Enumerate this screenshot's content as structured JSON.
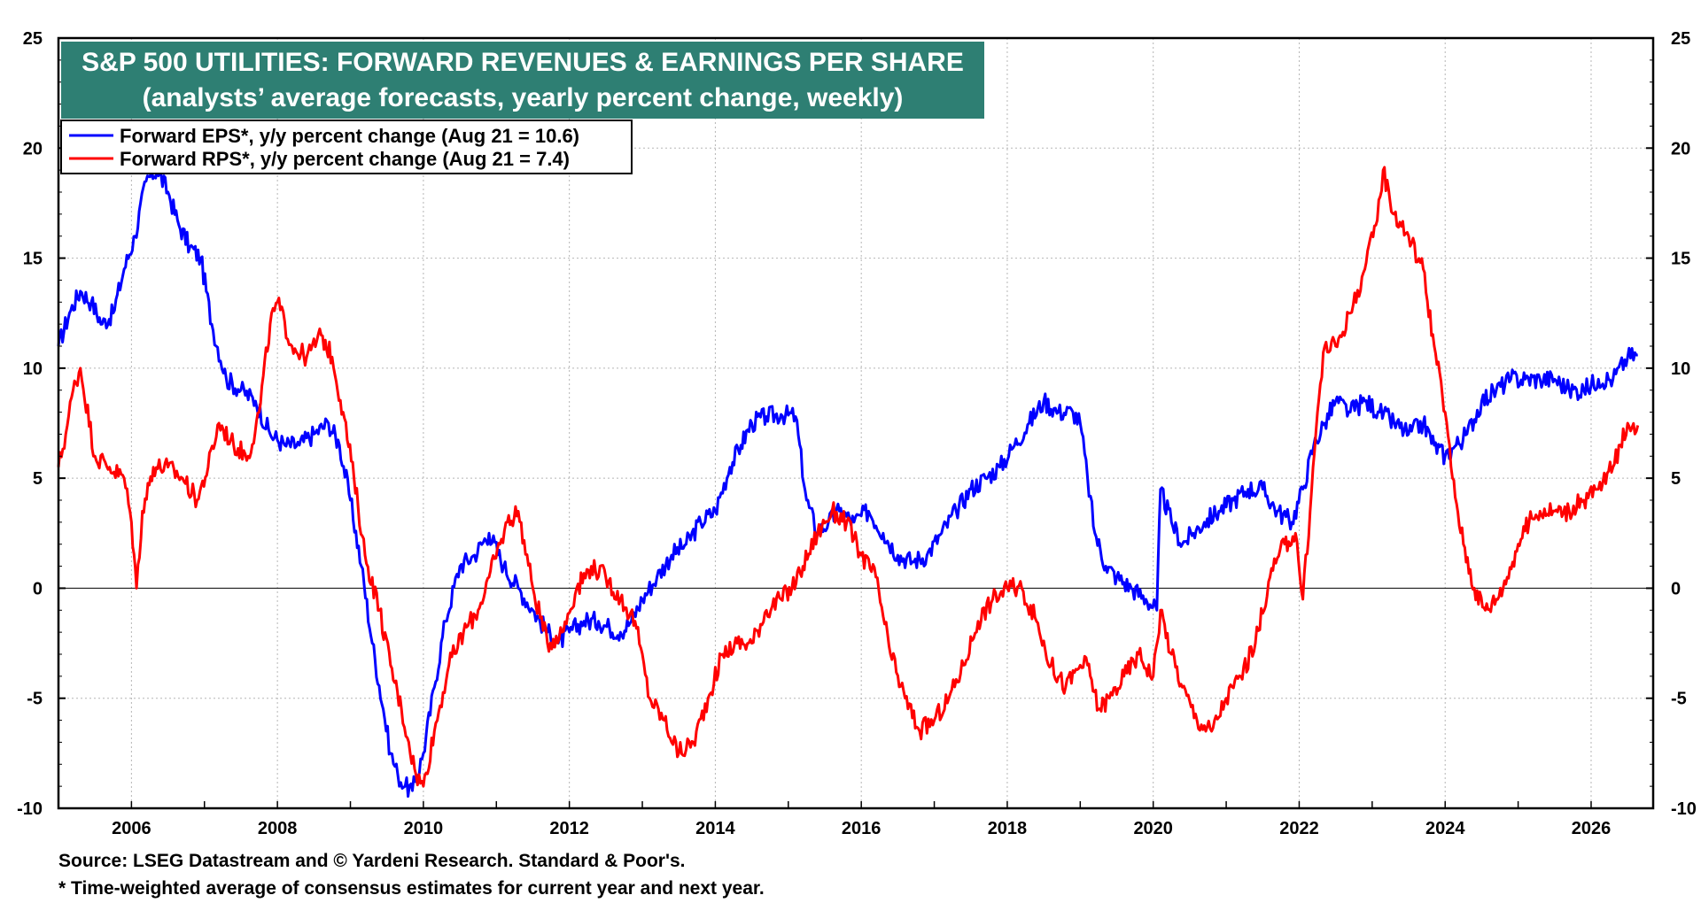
{
  "chart_data": {
    "type": "line",
    "title": "S&P 500 UTILITIES: FORWARD REVENUES & EARNINGS PER SHARE",
    "subtitle": "(analysts’ average forecasts, yearly percent change, weekly)",
    "xlabel": "",
    "ylabel": "",
    "xlim": [
      2005.0,
      2026.85
    ],
    "ylim": [
      -10,
      25
    ],
    "y_ticks": [
      -10,
      -5,
      0,
      5,
      10,
      15,
      20,
      25
    ],
    "y_tick_labels": [
      "-10",
      "-5",
      "0",
      "5",
      "10",
      "15",
      "20",
      "25"
    ],
    "x_ticks": [
      2006,
      2008,
      2010,
      2012,
      2014,
      2016,
      2018,
      2020,
      2022,
      2024,
      2026
    ],
    "x_tick_labels": [
      "2006",
      "2008",
      "2010",
      "2012",
      "2014",
      "2016",
      "2018",
      "2020",
      "2022",
      "2024",
      "2026"
    ],
    "grid": true,
    "zero_line": true,
    "legend_position": "top-left",
    "series": [
      {
        "name": "Forward EPS*, y/y percent change (Aug 21 = 10.6)",
        "color": "#0000ff",
        "x": [
          2005.0,
          2005.15,
          2005.3,
          2005.45,
          2005.6,
          2005.75,
          2005.9,
          2006.05,
          2006.2,
          2006.35,
          2006.5,
          2006.65,
          2006.8,
          2006.95,
          2007.1,
          2007.3,
          2007.5,
          2007.7,
          2007.9,
          2008.1,
          2008.3,
          2008.5,
          2008.7,
          2008.85,
          2009.0,
          2009.15,
          2009.3,
          2009.45,
          2009.55,
          2009.65,
          2009.75,
          2009.85,
          2010.0,
          2010.15,
          2010.3,
          2010.5,
          2010.7,
          2010.9,
          2011.1,
          2011.3,
          2011.5,
          2011.7,
          2011.85,
          2012.0,
          2012.2,
          2012.4,
          2012.55,
          2012.7,
          2012.85,
          2013.0,
          2013.2,
          2013.4,
          2013.6,
          2013.8,
          2014.0,
          2014.2,
          2014.35,
          2014.5,
          2014.7,
          2014.9,
          2015.1,
          2015.25,
          2015.4,
          2015.55,
          2015.7,
          2015.9,
          2016.1,
          2016.3,
          2016.5,
          2016.7,
          2016.9,
          2017.1,
          2017.3,
          2017.5,
          2017.7,
          2017.9,
          2018.1,
          2018.3,
          2018.5,
          2018.7,
          2018.9,
          2019.0,
          2019.1,
          2019.2,
          2019.35,
          2019.5,
          2019.7,
          2019.9,
          2020.05,
          2020.1,
          2020.25,
          2020.4,
          2020.55,
          2020.7,
          2020.9,
          2021.1,
          2021.3,
          2021.5,
          2021.7,
          2021.9,
          2022.05,
          2022.2,
          2022.35,
          2022.5,
          2022.7,
          2022.9,
          2023.1,
          2023.3,
          2023.5,
          2023.7,
          2023.85,
          2024.0,
          2024.15,
          2024.3,
          2024.5,
          2024.7,
          2024.9,
          2025.1,
          2025.3,
          2025.5,
          2025.7,
          2025.9,
          2026.1,
          2026.3,
          2026.5,
          2026.64
        ],
        "values": [
          11.0,
          12.5,
          13.5,
          13.0,
          12.0,
          12.5,
          14.5,
          16.0,
          18.5,
          19.0,
          18.0,
          16.5,
          15.5,
          15.0,
          12.0,
          9.5,
          9.0,
          8.5,
          7.0,
          6.5,
          6.5,
          7.0,
          7.5,
          6.5,
          4.0,
          1.0,
          -2.5,
          -5.5,
          -7.5,
          -8.5,
          -9.0,
          -9.2,
          -7.5,
          -4.5,
          -1.5,
          1.0,
          1.5,
          2.5,
          1.0,
          0.0,
          -1.0,
          -2.0,
          -2.5,
          -2.0,
          -1.5,
          -1.5,
          -1.8,
          -2.0,
          -1.5,
          -0.5,
          0.5,
          1.5,
          2.0,
          3.0,
          3.5,
          5.5,
          6.5,
          7.5,
          7.8,
          7.9,
          7.8,
          4.0,
          2.5,
          3.0,
          3.5,
          3.0,
          3.5,
          2.5,
          1.5,
          1.2,
          1.5,
          2.5,
          3.5,
          4.5,
          5.0,
          5.5,
          6.5,
          7.5,
          8.5,
          8.0,
          8.0,
          7.5,
          5.0,
          2.5,
          1.0,
          0.5,
          0.0,
          -0.5,
          -1.0,
          4.5,
          3.0,
          2.0,
          2.5,
          3.0,
          3.5,
          4.0,
          4.5,
          4.5,
          3.5,
          3.0,
          4.5,
          6.5,
          7.5,
          8.5,
          8.0,
          8.5,
          8.0,
          7.5,
          7.0,
          7.5,
          6.5,
          6.0,
          6.5,
          7.0,
          8.5,
          9.0,
          9.5,
          9.5,
          9.5,
          9.5,
          9.0,
          9.0,
          9.5,
          9.5,
          10.5,
          10.6
        ]
      },
      {
        "name": "Forward RPS*, y/y percent change (Aug 21 = 7.4)",
        "color": "#ff0000",
        "x": [
          2005.0,
          2005.1,
          2005.2,
          2005.3,
          2005.5,
          2005.7,
          2005.9,
          2006.0,
          2006.07,
          2006.15,
          2006.3,
          2006.5,
          2006.7,
          2006.9,
          2007.05,
          2007.2,
          2007.4,
          2007.6,
          2007.75,
          2007.9,
          2008.0,
          2008.2,
          2008.4,
          2008.6,
          2008.75,
          2008.9,
          2009.05,
          2009.2,
          2009.4,
          2009.55,
          2009.7,
          2009.8,
          2009.9,
          2010.0,
          2010.15,
          2010.35,
          2010.55,
          2010.75,
          2010.9,
          2011.05,
          2011.15,
          2011.3,
          2011.5,
          2011.7,
          2011.9,
          2012.1,
          2012.3,
          2012.5,
          2012.7,
          2012.9,
          2013.1,
          2013.3,
          2013.5,
          2013.7,
          2013.9,
          2014.1,
          2014.3,
          2014.5,
          2014.7,
          2014.9,
          2015.05,
          2015.2,
          2015.4,
          2015.6,
          2015.8,
          2016.0,
          2016.2,
          2016.4,
          2016.6,
          2016.8,
          2017.0,
          2017.2,
          2017.4,
          2017.6,
          2017.8,
          2018.0,
          2018.2,
          2018.4,
          2018.6,
          2018.8,
          2019.0,
          2019.1,
          2019.25,
          2019.4,
          2019.6,
          2019.8,
          2020.0,
          2020.1,
          2020.25,
          2020.4,
          2020.6,
          2020.8,
          2021.0,
          2021.2,
          2021.4,
          2021.6,
          2021.8,
          2021.95,
          2022.05,
          2022.15,
          2022.25,
          2022.35,
          2022.5,
          2022.7,
          2022.9,
          2023.05,
          2023.15,
          2023.3,
          2023.5,
          2023.7,
          2023.85,
          2024.0,
          2024.1,
          2024.25,
          2024.4,
          2024.55,
          2024.7,
          2024.85,
          2025.0,
          2025.15,
          2025.3,
          2025.5,
          2025.7,
          2025.9,
          2026.1,
          2026.3,
          2026.5,
          2026.64
        ],
        "values": [
          5.5,
          7.0,
          9.0,
          10.0,
          6.0,
          5.5,
          5.0,
          3.0,
          0.0,
          3.5,
          5.5,
          5.5,
          5.0,
          4.0,
          5.5,
          7.5,
          6.5,
          6.0,
          8.0,
          12.0,
          13.0,
          11.0,
          10.5,
          11.5,
          10.5,
          8.0,
          5.0,
          1.5,
          -1.0,
          -3.5,
          -5.5,
          -7.0,
          -8.5,
          -9.0,
          -6.5,
          -3.5,
          -2.0,
          -1.0,
          0.5,
          2.0,
          3.0,
          3.5,
          0.0,
          -2.5,
          -2.0,
          0.0,
          1.0,
          0.5,
          -0.5,
          -1.5,
          -5.0,
          -6.0,
          -7.5,
          -7.0,
          -5.0,
          -3.0,
          -2.5,
          -2.5,
          -1.0,
          -0.5,
          0.0,
          1.0,
          2.5,
          3.5,
          3.0,
          1.5,
          0.5,
          -3.0,
          -5.0,
          -6.5,
          -6.0,
          -5.0,
          -3.5,
          -1.5,
          -0.5,
          0.0,
          0.0,
          -1.5,
          -3.5,
          -4.5,
          -3.5,
          -3.5,
          -5.5,
          -5.0,
          -4.0,
          -3.0,
          -4.0,
          -1.0,
          -3.0,
          -4.5,
          -6.0,
          -6.5,
          -5.0,
          -4.0,
          -2.5,
          0.5,
          2.0,
          2.5,
          -0.5,
          3.5,
          8.0,
          11.0,
          11.0,
          12.5,
          14.5,
          16.5,
          19.0,
          17.0,
          16.0,
          14.5,
          11.0,
          8.0,
          5.0,
          2.0,
          0.0,
          -1.0,
          -0.5,
          0.5,
          2.0,
          3.0,
          3.5,
          3.5,
          3.5,
          4.0,
          4.5,
          5.5,
          7.5,
          7.4
        ]
      }
    ],
    "annotations": [
      "Source: LSEG Datastream and © Yardeni Research. Standard & Poor's.",
      "* Time-weighted average of consensus estimates for current year and next year."
    ]
  },
  "footer": {
    "source": "Source: LSEG Datastream and © Yardeni Research. Standard & Poor's.",
    "note": "* Time-weighted average of consensus estimates for current year and next year."
  }
}
